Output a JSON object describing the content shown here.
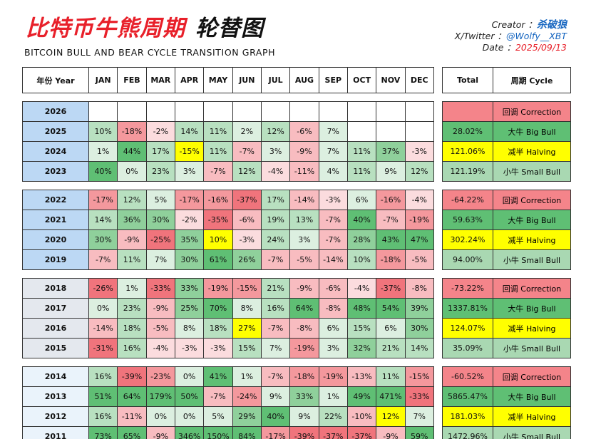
{
  "header": {
    "title_main": "比特币牛熊周期",
    "title_sub": "轮替图",
    "subtitle": "BITCOIN BULL AND BEAR CYCLE TRANSITION GRAPH",
    "creator_label": "Creator ：",
    "creator_value": "杀破狼",
    "twitter_label": "X/Twitter ：",
    "twitter_value": "@Wolfy__XBT",
    "date_label": "Date ：",
    "date_value": "2025/09/13"
  },
  "columns": {
    "year": "年份 Year",
    "months": [
      "JAN",
      "FEB",
      "MAR",
      "APR",
      "MAY",
      "JUN",
      "JUL",
      "AUG",
      "SEP",
      "OCT",
      "NOV",
      "DEC"
    ],
    "total": "Total",
    "cycle": "周期 Cycle"
  },
  "colors": {
    "yellow": "#ffff00",
    "year_col_blue": "#bcd8f4",
    "year_col_grey": "#e4e8ee",
    "year_col_light": "#eaf3fb",
    "correction_bg": "#f4848a"
  },
  "chart_data": {
    "type": "table",
    "groups": [
      {
        "year_bg": "#bcd8f4",
        "rows": [
          {
            "year": "2026",
            "months": [
              "",
              "",
              "",
              "",
              "",
              "",
              "",
              "",
              "",
              "",
              "",
              ""
            ],
            "total": "",
            "cycle": "回调 Correction"
          },
          {
            "year": "2025",
            "months": [
              "10%",
              "-18%",
              "-2%",
              "14%",
              "11%",
              "2%",
              "12%",
              "-6%",
              "7%",
              "",
              "",
              ""
            ],
            "total": "28.02%",
            "cycle": "大牛 Big Bull"
          },
          {
            "year": "2024",
            "months": [
              "1%",
              "44%",
              "17%",
              "-15%",
              "11%",
              "-7%",
              "3%",
              "-9%",
              "7%",
              "11%",
              "37%",
              "-3%"
            ],
            "total": "121.06%",
            "cycle": "减半 Halving"
          },
          {
            "year": "2023",
            "months": [
              "40%",
              "0%",
              "23%",
              "3%",
              "-7%",
              "12%",
              "-4%",
              "-11%",
              "4%",
              "11%",
              "9%",
              "12%"
            ],
            "total": "121.19%",
            "cycle": "小牛 Small Bull"
          }
        ]
      },
      {
        "year_bg": "#bcd8f4",
        "rows": [
          {
            "year": "2022",
            "months": [
              "-17%",
              "12%",
              "5%",
              "-17%",
              "-16%",
              "-37%",
              "17%",
              "-14%",
              "-3%",
              "6%",
              "-16%",
              "-4%"
            ],
            "total": "-64.22%",
            "cycle": "回调 Correction"
          },
          {
            "year": "2021",
            "months": [
              "14%",
              "36%",
              "30%",
              "-2%",
              "-35%",
              "-6%",
              "19%",
              "13%",
              "-7%",
              "40%",
              "-7%",
              "-19%"
            ],
            "total": "59.63%",
            "cycle": "大牛 Big Bull"
          },
          {
            "year": "2020",
            "months": [
              "30%",
              "-9%",
              "-25%",
              "35%",
              "10%",
              "-3%",
              "24%",
              "3%",
              "-7%",
              "28%",
              "43%",
              "47%"
            ],
            "total": "302.24%",
            "cycle": "减半 Halving"
          },
          {
            "year": "2019",
            "months": [
              "-7%",
              "11%",
              "7%",
              "30%",
              "61%",
              "26%",
              "-7%",
              "-5%",
              "-14%",
              "10%",
              "-18%",
              "-5%"
            ],
            "total": "94.00%",
            "cycle": "小牛 Small Bull"
          }
        ]
      },
      {
        "year_bg": "#e4e8ee",
        "rows": [
          {
            "year": "2018",
            "months": [
              "-26%",
              "1%",
              "-33%",
              "33%",
              "-19%",
              "-15%",
              "21%",
              "-9%",
              "-6%",
              "-4%",
              "-37%",
              "-8%"
            ],
            "total": "-73.22%",
            "cycle": "回调 Correction"
          },
          {
            "year": "2017",
            "months": [
              "0%",
              "23%",
              "-9%",
              "25%",
              "70%",
              "8%",
              "16%",
              "64%",
              "-8%",
              "48%",
              "54%",
              "39%"
            ],
            "total": "1337.81%",
            "cycle": "大牛 Big Bull"
          },
          {
            "year": "2016",
            "months": [
              "-14%",
              "18%",
              "-5%",
              "8%",
              "18%",
              "27%",
              "-7%",
              "-8%",
              "6%",
              "15%",
              "6%",
              "30%"
            ],
            "total": "124.07%",
            "cycle": "减半 Halving"
          },
          {
            "year": "2015",
            "months": [
              "-31%",
              "16%",
              "-4%",
              "-3%",
              "-3%",
              "15%",
              "7%",
              "-19%",
              "3%",
              "32%",
              "21%",
              "14%"
            ],
            "total": "35.09%",
            "cycle": "小牛 Small Bull"
          }
        ]
      },
      {
        "year_bg": "#eaf3fb",
        "rows": [
          {
            "year": "2014",
            "months": [
              "16%",
              "-39%",
              "-23%",
              "0%",
              "41%",
              "1%",
              "-7%",
              "-18%",
              "-19%",
              "-13%",
              "11%",
              "-15%"
            ],
            "total": "-60.52%",
            "cycle": "回调 Correction"
          },
          {
            "year": "2013",
            "months": [
              "51%",
              "64%",
              "179%",
              "50%",
              "-7%",
              "-24%",
              "9%",
              "33%",
              "1%",
              "49%",
              "471%",
              "-33%"
            ],
            "total": "5865.47%",
            "cycle": "大牛 Big Bull"
          },
          {
            "year": "2012",
            "months": [
              "16%",
              "-11%",
              "0%",
              "0%",
              "5%",
              "29%",
              "40%",
              "9%",
              "22%",
              "-10%",
              "12%",
              "7%"
            ],
            "total": "181.03%",
            "cycle": "减半 Halving"
          },
          {
            "year": "2011",
            "months": [
              "73%",
              "65%",
              "-9%",
              "346%",
              "150%",
              "84%",
              "-17%",
              "-39%",
              "-37%",
              "-37%",
              "-9%",
              "59%"
            ],
            "total": "1472.96%",
            "cycle": "小牛 Small Bull"
          }
        ]
      }
    ],
    "highlight_yellow": [
      [
        "2024",
        "APR"
      ],
      [
        "2020",
        "MAY"
      ],
      [
        "2016",
        "JUN"
      ],
      [
        "2012",
        "NOV"
      ]
    ]
  }
}
